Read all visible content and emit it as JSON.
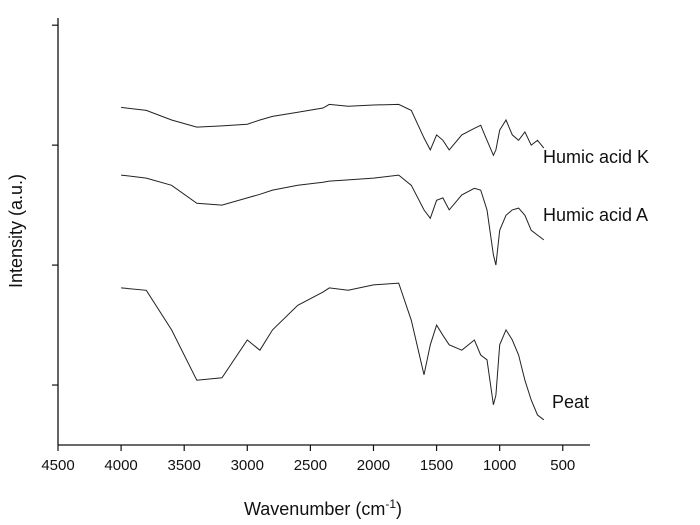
{
  "chart_data": {
    "type": "line",
    "x_label": [
      "Wavenumber (cm",
      "-1",
      ")"
    ],
    "y_label": "Intensity (a.u.)",
    "x": [
      4000,
      3800,
      3600,
      3400,
      3200,
      3000,
      2900,
      2800,
      2600,
      2400,
      2350,
      2200,
      2000,
      1800,
      1700,
      1600,
      1550,
      1500,
      1450,
      1400,
      1300,
      1200,
      1150,
      1100,
      1050,
      1030,
      1000,
      950,
      900,
      850,
      800,
      750,
      700,
      650
    ],
    "series": [
      {
        "name": "Humic acid K",
        "color": "#222222",
        "values": [
          5.63,
          5.58,
          5.42,
          5.3,
          5.32,
          5.35,
          5.42,
          5.48,
          5.55,
          5.62,
          5.68,
          5.65,
          5.67,
          5.68,
          5.58,
          5.12,
          4.92,
          5.17,
          5.08,
          4.92,
          5.17,
          5.28,
          5.33,
          5.08,
          4.83,
          4.92,
          5.25,
          5.42,
          5.17,
          5.08,
          5.22,
          5.0,
          5.08,
          4.95
        ]
      },
      {
        "name": "Humic acid A",
        "color": "#222222",
        "values": [
          4.5,
          4.45,
          4.33,
          4.03,
          4.0,
          4.12,
          4.18,
          4.25,
          4.33,
          4.38,
          4.4,
          4.42,
          4.45,
          4.5,
          4.33,
          3.92,
          3.78,
          4.08,
          4.12,
          3.92,
          4.17,
          4.28,
          4.25,
          3.92,
          3.17,
          3.0,
          3.58,
          3.83,
          3.92,
          3.95,
          3.83,
          3.58,
          3.5,
          3.42
        ]
      },
      {
        "name": "Peat",
        "color": "#222222",
        "values": [
          2.62,
          2.58,
          1.92,
          1.08,
          1.12,
          1.75,
          1.58,
          1.92,
          2.33,
          2.55,
          2.62,
          2.58,
          2.67,
          2.7,
          2.08,
          1.17,
          1.67,
          2.0,
          1.83,
          1.67,
          1.58,
          1.75,
          1.5,
          1.42,
          0.67,
          0.83,
          1.67,
          1.92,
          1.75,
          1.5,
          1.08,
          0.75,
          0.5,
          0.42
        ]
      }
    ],
    "xlim": [
      4500,
      300
    ],
    "xticks": [
      4500,
      4000,
      3500,
      3000,
      2500,
      2000,
      1500,
      1000,
      500
    ],
    "ylim": [
      0,
      7.12
    ],
    "yticks": [
      1,
      3,
      5,
      7
    ]
  }
}
